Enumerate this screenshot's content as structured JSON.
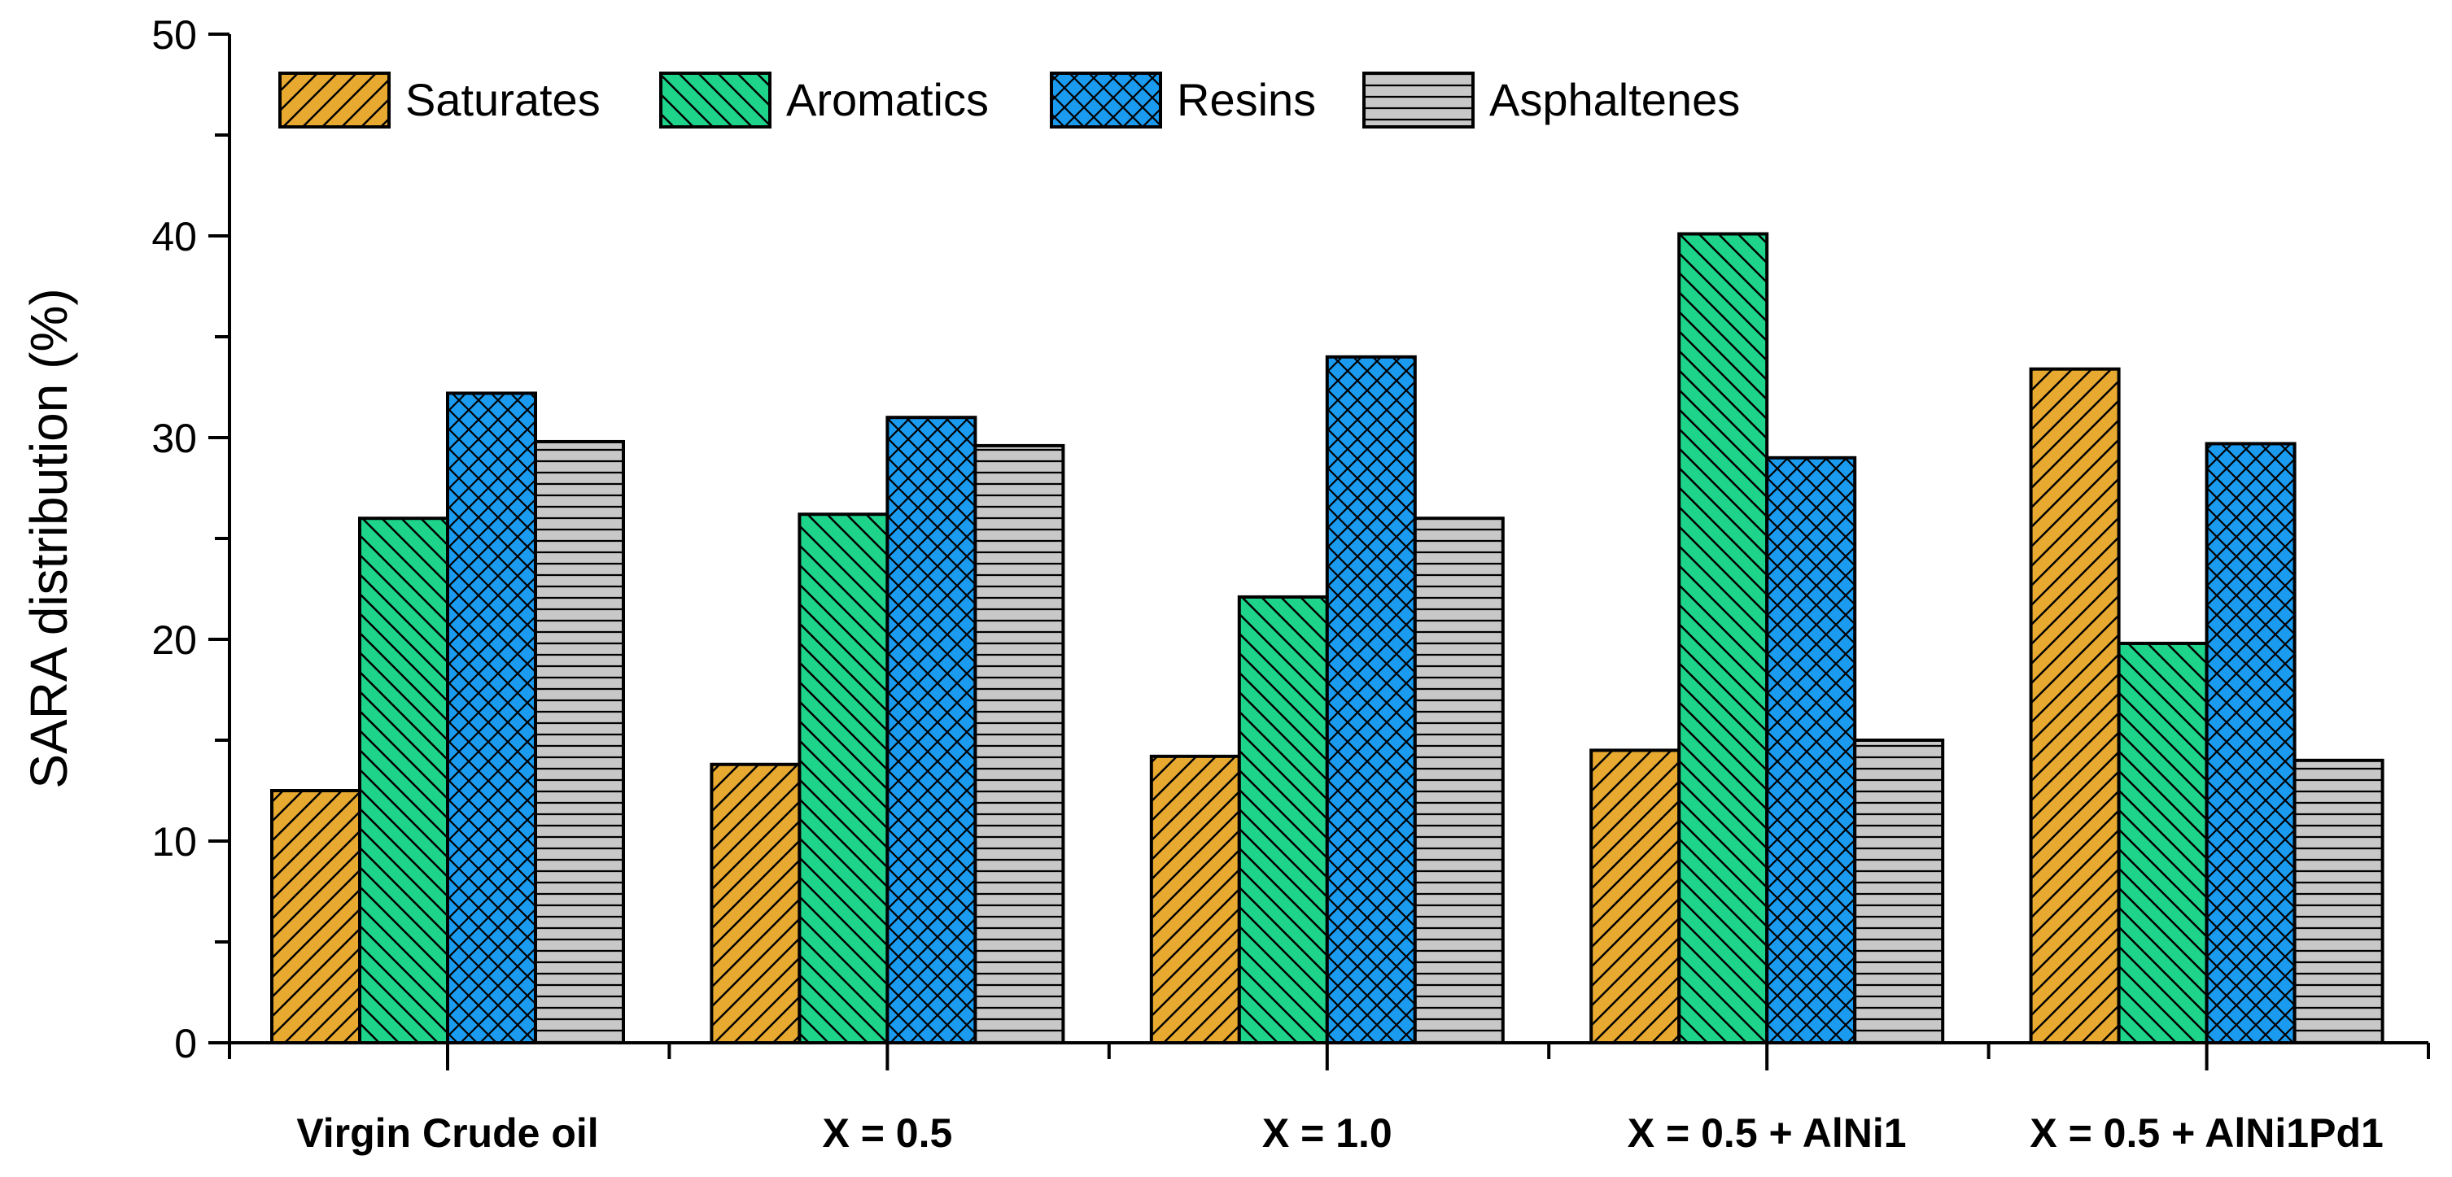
{
  "chart_data": {
    "type": "bar",
    "title": "",
    "xlabel": "",
    "ylabel": "SARA distribution (%)",
    "ylim": [
      0,
      50
    ],
    "yticks": [
      0,
      10,
      20,
      30,
      40,
      50
    ],
    "grid": false,
    "legend_position": "top-left",
    "categories": [
      "Virgin Crude oil",
      "X = 0.5",
      "X = 1.0",
      "X = 0.5 + AlNi1",
      "X = 0.5 + AlNi1Pd1"
    ],
    "series": [
      {
        "name": "Saturates",
        "color": "#E8A930",
        "pattern": "diagonal-up",
        "values": [
          12.5,
          13.8,
          14.2,
          14.5,
          33.4
        ]
      },
      {
        "name": "Aromatics",
        "color": "#1ED38A",
        "pattern": "diagonal-down",
        "values": [
          26.0,
          26.2,
          22.1,
          40.1,
          19.8
        ]
      },
      {
        "name": "Resins",
        "color": "#1A9BF0",
        "pattern": "crosshatch",
        "values": [
          32.2,
          31.0,
          34.0,
          29.0,
          29.7
        ]
      },
      {
        "name": "Asphaltenes",
        "color": "#C8C8C8",
        "pattern": "horizontal",
        "values": [
          29.8,
          29.6,
          26.0,
          15.0,
          14.0
        ]
      }
    ]
  }
}
